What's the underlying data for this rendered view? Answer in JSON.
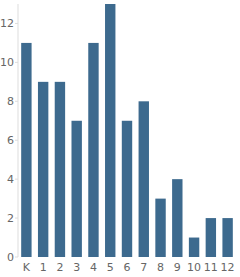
{
  "chart_data": {
    "type": "bar",
    "categories": [
      "K",
      "1",
      "2",
      "3",
      "4",
      "5",
      "6",
      "7",
      "8",
      "9",
      "10",
      "11",
      "12"
    ],
    "values": [
      11,
      9,
      9,
      7,
      11,
      13,
      7,
      8,
      3,
      4,
      1,
      2,
      2
    ],
    "color": "#3d6a8e",
    "ylim": [
      0,
      13
    ],
    "yticks": [
      0,
      2,
      4,
      6,
      8,
      10,
      12
    ],
    "grid": false
  }
}
